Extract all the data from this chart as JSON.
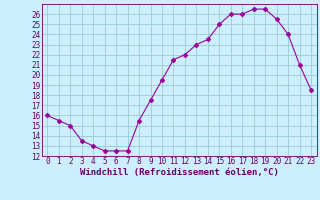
{
  "hours": [
    0,
    1,
    2,
    3,
    4,
    5,
    6,
    7,
    8,
    9,
    10,
    11,
    12,
    13,
    14,
    15,
    16,
    17,
    18,
    19,
    20,
    21,
    22,
    23
  ],
  "windchill": [
    16,
    15.5,
    15,
    13.5,
    13,
    12.5,
    12.5,
    12.5,
    15.5,
    17.5,
    19.5,
    21.5,
    22,
    23,
    23.5,
    25,
    26,
    26,
    26.5,
    26.5,
    25.5,
    24,
    21,
    18.5
  ],
  "xlabel": "Windchill (Refroidissement éolien,°C)",
  "ylim": [
    12,
    27
  ],
  "xlim": [
    -0.5,
    23.5
  ],
  "yticks": [
    12,
    13,
    14,
    15,
    16,
    17,
    18,
    19,
    20,
    21,
    22,
    23,
    24,
    25,
    26
  ],
  "xticks": [
    0,
    1,
    2,
    3,
    4,
    5,
    6,
    7,
    8,
    9,
    10,
    11,
    12,
    13,
    14,
    15,
    16,
    17,
    18,
    19,
    20,
    21,
    22,
    23
  ],
  "line_color": "#990099",
  "marker": "D",
  "bg_color": "#cceeff",
  "grid_color": "#99cccc",
  "label_color": "#660066",
  "tick_fontsize": 5.5,
  "xlabel_fontsize": 6.5,
  "marker_size": 2.0,
  "linewidth": 0.8
}
